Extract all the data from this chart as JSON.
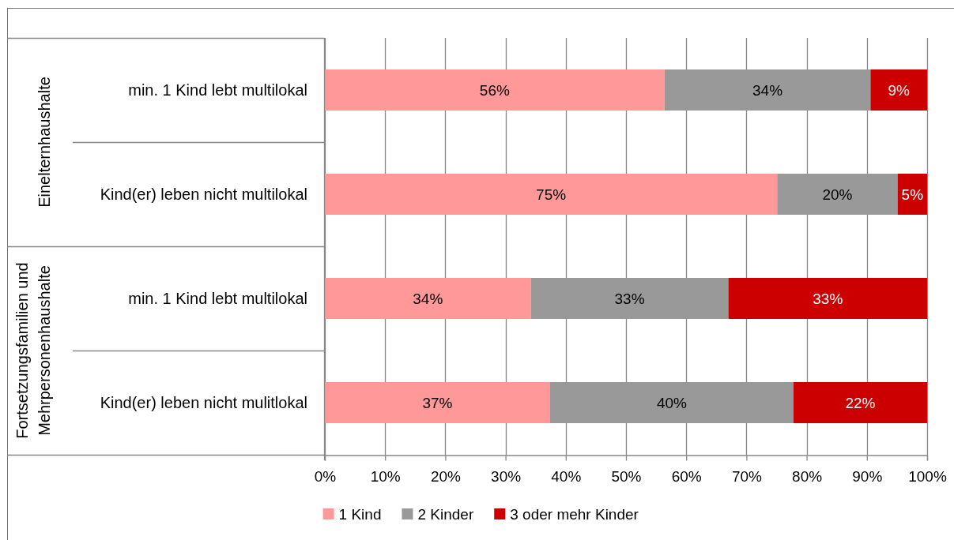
{
  "chart_data": {
    "type": "bar",
    "orientation": "horizontal",
    "stacked": true,
    "categories": [
      "min. 1 Kind lebt multilokal",
      "Kind(er) leben nicht multilokal",
      "min. 1 Kind lebt multilokal",
      "Kind(er) leben nicht mulitlokal"
    ],
    "series": [
      {
        "name": "1 Kind",
        "color": "#ff9999",
        "values": [
          56.4,
          75.1,
          34.2,
          37.4
        ],
        "value_labels": [
          "56%",
          "75%",
          "34%",
          "37%"
        ]
      },
      {
        "name": "2 Kinder",
        "color": "#999999",
        "values": [
          34.2,
          20.0,
          32.8,
          40.4
        ],
        "value_labels": [
          "34%",
          "20%",
          "33%",
          "40%"
        ]
      },
      {
        "name": "3 oder mehr Kinder",
        "color": "#cc0000",
        "values": [
          9.4,
          4.9,
          33.0,
          22.2
        ],
        "value_labels": [
          "9%",
          "5%",
          "33%",
          "22%"
        ]
      }
    ],
    "xlim": [
      0,
      100
    ],
    "xticks": [
      {
        "value": 0,
        "label": "0%"
      },
      {
        "value": 10,
        "label": "10%"
      },
      {
        "value": 20,
        "label": "20%"
      },
      {
        "value": 30,
        "label": "30%"
      },
      {
        "value": 40,
        "label": "40%"
      },
      {
        "value": 50,
        "label": "50%"
      },
      {
        "value": 60,
        "label": "60%"
      },
      {
        "value": 70,
        "label": "70%"
      },
      {
        "value": 80,
        "label": "80%"
      },
      {
        "value": 90,
        "label": "90%"
      },
      {
        "value": 100,
        "label": "100%"
      }
    ],
    "grid": "x",
    "legend": "bottom",
    "annotations": [
      "Einelternhaushalte",
      "Fortsetzungsfamilien und Mehrpersonenhaushalte"
    ]
  }
}
